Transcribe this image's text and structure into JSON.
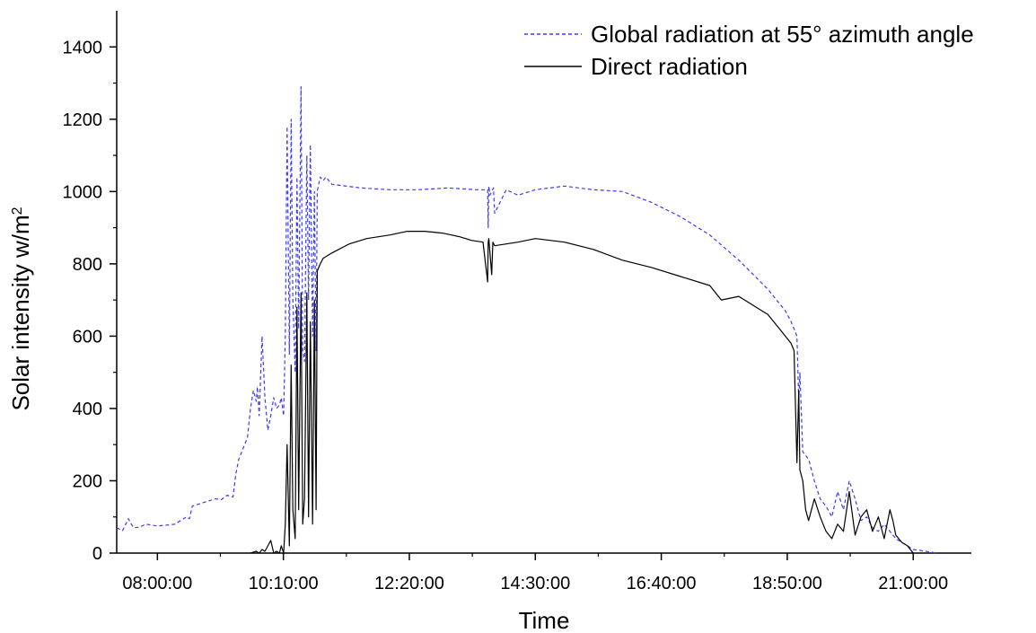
{
  "chart_data": {
    "type": "line",
    "xlabel": "Time",
    "ylabel_main": "Solar intensity w/m",
    "ylabel_sup": "2",
    "x_unit": "hours of day",
    "xlim": [
      7.3,
      22.0
    ],
    "ylim": [
      0,
      1500
    ],
    "x_ticks": [
      {
        "label": "08:00:00",
        "value": 8.0
      },
      {
        "label": "10:10:00",
        "value": 10.1667
      },
      {
        "label": "12:20:00",
        "value": 12.3333
      },
      {
        "label": "14:30:00",
        "value": 14.5
      },
      {
        "label": "16:40:00",
        "value": 16.6667
      },
      {
        "label": "18:50:00",
        "value": 18.8333
      },
      {
        "label": "21:00:00",
        "value": 21.0
      }
    ],
    "y_ticks": [
      {
        "label": "0",
        "value": 0
      },
      {
        "label": "200",
        "value": 200
      },
      {
        "label": "400",
        "value": 400
      },
      {
        "label": "600",
        "value": 600
      },
      {
        "label": "800",
        "value": 800
      },
      {
        "label": "1000",
        "value": 1000
      },
      {
        "label": "1200",
        "value": 1200
      },
      {
        "label": "1400",
        "value": 1400
      }
    ],
    "legend_position": "top-right",
    "grid": false,
    "series": [
      {
        "name": "Global radiation at 55° azimuth angle",
        "color": "#3a3aff",
        "style": "dashed",
        "x": [
          7.3,
          7.4,
          7.5,
          7.55,
          7.6,
          7.7,
          7.8,
          8.0,
          8.2,
          8.3,
          8.5,
          8.55,
          8.6,
          8.8,
          9.0,
          9.1,
          9.2,
          9.3,
          9.35,
          9.4,
          9.5,
          9.55,
          9.6,
          9.65,
          9.7,
          9.72,
          9.75,
          9.8,
          9.85,
          9.9,
          9.95,
          10.0,
          10.05,
          10.1,
          10.13,
          10.17,
          10.2,
          10.23,
          10.27,
          10.3,
          10.33,
          10.37,
          10.4,
          10.43,
          10.47,
          10.5,
          10.53,
          10.57,
          10.6,
          10.63,
          10.67,
          10.7,
          10.73,
          10.75,
          10.8,
          10.85,
          10.9,
          11.0,
          11.5,
          12.0,
          12.5,
          13.0,
          13.5,
          13.68,
          13.69,
          13.7,
          13.72,
          13.78,
          13.8,
          14.0,
          14.2,
          14.5,
          15.0,
          15.5,
          16.0,
          16.5,
          17.0,
          17.5,
          18.0,
          18.5,
          18.8,
          18.9,
          18.95,
          19.0,
          19.03,
          19.05,
          19.1,
          19.2,
          19.3,
          19.4,
          19.5,
          19.6,
          19.7,
          19.8,
          19.9,
          20.0,
          20.1,
          20.2,
          20.3,
          20.4,
          20.5,
          20.6,
          20.7,
          20.8,
          20.9,
          21.0,
          21.1,
          21.2,
          21.3,
          21.4
        ],
        "y": [
          70,
          62,
          95,
          80,
          70,
          72,
          80,
          75,
          78,
          80,
          100,
          95,
          130,
          140,
          150,
          148,
          160,
          155,
          220,
          260,
          300,
          320,
          400,
          450,
          420,
          460,
          380,
          600,
          430,
          340,
          380,
          430,
          400,
          410,
          430,
          380,
          600,
          1180,
          550,
          1200,
          700,
          500,
          1040,
          620,
          1290,
          560,
          530,
          1100,
          700,
          1130,
          600,
          1000,
          560,
          1000,
          1040,
          1030,
          1040,
          1020,
          1010,
          1005,
          1005,
          1010,
          1005,
          1005,
          900,
          1015,
          990,
          1010,
          940,
          1005,
          990,
          1005,
          1015,
          1005,
          1000,
          970,
          930,
          880,
          810,
          730,
          670,
          640,
          620,
          600,
          420,
          500,
          280,
          260,
          200,
          150,
          130,
          100,
          170,
          120,
          200,
          150,
          90,
          100,
          70,
          60,
          80,
          60,
          40,
          30,
          20,
          10,
          8,
          5,
          3,
          0
        ]
      },
      {
        "name": "Direct radiation",
        "color": "#000000",
        "style": "solid",
        "x": [
          9.6,
          9.7,
          9.75,
          9.8,
          9.85,
          9.9,
          9.95,
          10.0,
          10.05,
          10.1,
          10.13,
          10.17,
          10.2,
          10.23,
          10.27,
          10.3,
          10.33,
          10.37,
          10.4,
          10.43,
          10.47,
          10.5,
          10.53,
          10.57,
          10.6,
          10.63,
          10.67,
          10.7,
          10.73,
          10.75,
          10.8,
          10.85,
          10.9,
          11.0,
          11.3,
          11.6,
          12.0,
          12.3,
          12.6,
          12.9,
          13.2,
          13.4,
          13.6,
          13.68,
          13.69,
          13.7,
          13.75,
          13.77,
          13.8,
          14.0,
          14.2,
          14.5,
          15.0,
          15.5,
          16.0,
          16.5,
          17.0,
          17.5,
          17.7,
          18.0,
          18.3,
          18.5,
          18.7,
          18.85,
          18.9,
          18.95,
          19.0,
          19.03,
          19.05,
          19.1,
          19.15,
          19.2,
          19.3,
          19.4,
          19.5,
          19.6,
          19.7,
          19.8,
          19.9,
          20.0,
          20.1,
          20.2,
          20.3,
          20.4,
          20.5,
          20.6,
          20.65,
          20.7,
          20.8,
          20.9,
          21.0
        ],
        "y": [
          0,
          5,
          0,
          10,
          5,
          20,
          35,
          0,
          5,
          0,
          20,
          0,
          80,
          300,
          20,
          520,
          120,
          40,
          680,
          120,
          720,
          80,
          150,
          720,
          100,
          640,
          80,
          700,
          120,
          780,
          800,
          815,
          820,
          830,
          855,
          870,
          880,
          890,
          890,
          885,
          875,
          865,
          860,
          750,
          860,
          870,
          770,
          860,
          850,
          855,
          860,
          870,
          860,
          840,
          810,
          790,
          765,
          740,
          700,
          710,
          680,
          660,
          620,
          590,
          580,
          560,
          250,
          450,
          230,
          200,
          120,
          90,
          150,
          100,
          60,
          40,
          80,
          60,
          170,
          50,
          100,
          120,
          60,
          100,
          40,
          120,
          90,
          50,
          30,
          20,
          0
        ]
      }
    ]
  }
}
